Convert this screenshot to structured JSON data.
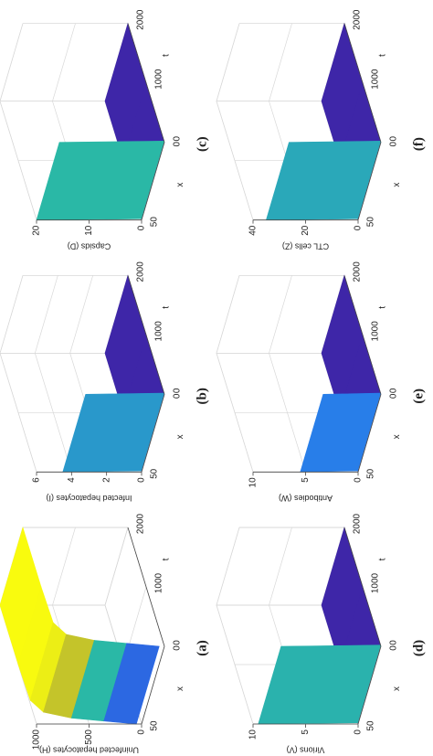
{
  "chart_data": [
    {
      "type": "surface",
      "title": "(a)",
      "zlabel": "Uninfected hepatocytes (H)",
      "xlabel": "x",
      "ylabel": "t",
      "xlim": [
        0,
        50
      ],
      "xticks": [
        0,
        50
      ],
      "ylim": [
        0,
        2000
      ],
      "yticks": [
        0,
        1000,
        2000
      ],
      "zlim": [
        0,
        1000
      ],
      "zticks": [
        0,
        500,
        1000
      ],
      "y": [
        0,
        50,
        100,
        200,
        400,
        1000,
        2000
      ],
      "values": [
        50,
        350,
        650,
        900,
        990,
        1000,
        1000
      ]
    },
    {
      "type": "surface",
      "title": "(b)",
      "zlabel": "Infected hepatocytes (I)",
      "xlabel": "x",
      "ylabel": "t",
      "xlim": [
        0,
        50
      ],
      "xticks": [
        0,
        50
      ],
      "ylim": [
        0,
        2000
      ],
      "yticks": [
        0,
        1000,
        2000
      ],
      "zlim": [
        0,
        6
      ],
      "zticks": [
        0,
        2,
        4,
        6
      ],
      "y": [
        0,
        20,
        1000,
        2000
      ],
      "values": [
        4.5,
        0,
        0,
        0
      ]
    },
    {
      "type": "surface",
      "title": "(c)",
      "zlabel": "Capsids (D)",
      "xlabel": "x",
      "ylabel": "t",
      "xlim": [
        0,
        50
      ],
      "xticks": [
        0,
        50
      ],
      "ylim": [
        0,
        2000
      ],
      "yticks": [
        0,
        1000,
        2000
      ],
      "zlim": [
        0,
        20
      ],
      "zticks": [
        0,
        10,
        20
      ],
      "y": [
        0,
        20,
        1000,
        2000
      ],
      "values": [
        20,
        0,
        0,
        0
      ]
    },
    {
      "type": "surface",
      "title": "(d)",
      "zlabel": "Virions (V)",
      "xlabel": "x",
      "ylabel": "t",
      "xlim": [
        0,
        50
      ],
      "xticks": [
        0,
        50
      ],
      "ylim": [
        0,
        2000
      ],
      "yticks": [
        0,
        1000,
        2000
      ],
      "zlim": [
        0,
        10
      ],
      "zticks": [
        0,
        5,
        10
      ],
      "y": [
        0,
        20,
        1000,
        2000
      ],
      "values": [
        9.5,
        0,
        0,
        0
      ]
    },
    {
      "type": "surface",
      "title": "(e)",
      "zlabel": "Antibodies (W)",
      "xlabel": "x",
      "ylabel": "t",
      "xlim": [
        0,
        50
      ],
      "xticks": [
        0,
        50
      ],
      "ylim": [
        0,
        2000
      ],
      "yticks": [
        0,
        1000,
        2000
      ],
      "zlim": [
        0,
        10
      ],
      "zticks": [
        0,
        5,
        10
      ],
      "y": [
        0,
        20,
        1000,
        2000
      ],
      "values": [
        5.5,
        0,
        0,
        0
      ]
    },
    {
      "type": "surface",
      "title": "(f)",
      "zlabel": "CTL cells (Z)",
      "xlabel": "x",
      "ylabel": "t",
      "xlim": [
        0,
        50
      ],
      "xticks": [
        0,
        50
      ],
      "ylim": [
        0,
        2000
      ],
      "yticks": [
        0,
        1000,
        2000
      ],
      "zlim": [
        0,
        40
      ],
      "zticks": [
        0,
        20,
        40
      ],
      "y": [
        0,
        20,
        1000,
        2000
      ],
      "values": [
        35,
        0,
        0,
        0
      ]
    }
  ]
}
